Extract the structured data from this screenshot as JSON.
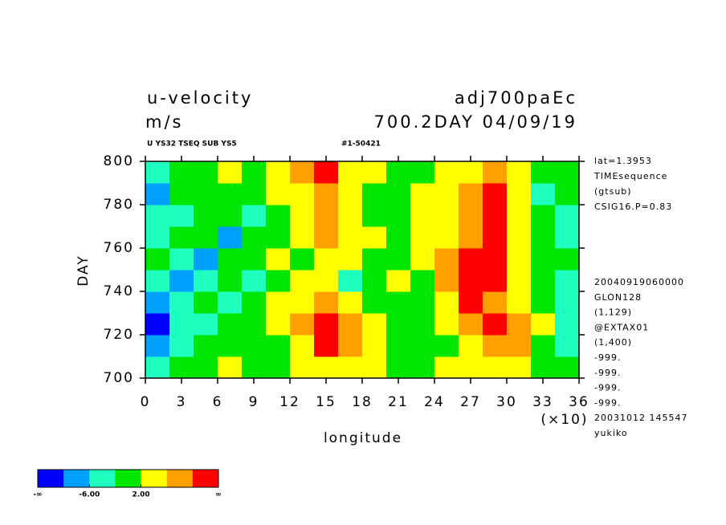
{
  "chart_data": {
    "type": "heatmap",
    "title": "u-velocity",
    "units": "m/s",
    "experiment": "adj700paEc",
    "time_label": "700.2DAY 04/09/19",
    "subtitle": "U YS32 TSEQ SUB YS5",
    "run_id": "#1-50421",
    "x_label": "longitude",
    "x_scale_label": "(×10)",
    "y_label": "DAY",
    "xlim": [
      0,
      36
    ],
    "xticks": [
      0,
      3,
      6,
      9,
      12,
      15,
      18,
      21,
      24,
      27,
      30,
      33,
      36
    ],
    "ylim": [
      700,
      800
    ],
    "yticks": [
      700,
      720,
      740,
      760,
      780,
      800
    ],
    "x_edges": [
      0,
      2,
      4,
      6,
      8,
      10,
      12,
      14,
      16,
      18,
      20,
      22,
      24,
      26,
      28,
      30,
      32,
      34,
      36
    ],
    "y_edges": [
      700,
      710,
      720,
      730,
      740,
      750,
      760,
      770,
      780,
      790,
      800
    ],
    "z": [
      [
        -3,
        -1,
        0,
        2,
        1,
        0,
        3,
        5,
        4,
        3,
        1,
        0,
        2,
        4,
        5,
        3,
        0,
        -2
      ],
      [
        -7,
        -4,
        -1,
        1,
        -2,
        0,
        4,
        11,
        7,
        3,
        0,
        -1,
        1,
        5,
        8,
        6,
        1,
        -4
      ],
      [
        -11,
        -6,
        -3,
        0,
        -1,
        2,
        6,
        12,
        8,
        2,
        -1,
        0,
        3,
        7,
        12,
        9,
        2,
        -3
      ],
      [
        -8,
        -5,
        -2,
        -4,
        -1,
        3,
        5,
        9,
        4,
        1,
        -2,
        1,
        4,
        12,
        9,
        5,
        0,
        -5
      ],
      [
        -4,
        -7,
        -3,
        -1,
        -5,
        0,
        4,
        3,
        -6,
        0,
        2,
        1,
        6,
        11,
        10,
        4,
        -1,
        -3
      ],
      [
        -2,
        -3,
        -8,
        -2,
        0,
        2,
        1,
        5,
        3,
        1,
        0,
        3,
        7,
        13,
        12,
        3,
        0,
        -2
      ],
      [
        -6,
        -2,
        -1,
        -9,
        -1,
        0,
        2,
        8,
        5,
        2,
        1,
        4,
        5,
        9,
        11,
        2,
        -1,
        -4
      ],
      [
        -3,
        -5,
        -1,
        0,
        -3,
        1,
        4,
        6,
        3,
        0,
        -1,
        2,
        4,
        8,
        10,
        3,
        -2,
        -6
      ],
      [
        -9,
        -2,
        0,
        -1,
        1,
        2,
        5,
        9,
        4,
        1,
        0,
        3,
        2,
        6,
        11,
        4,
        -3,
        -2
      ],
      [
        -5,
        -1,
        1,
        2,
        0,
        3,
        6,
        10,
        5,
        2,
        1,
        0,
        3,
        5,
        9,
        2,
        0,
        -1
      ]
    ],
    "levels": [
      -10,
      -6,
      -2,
      2,
      6,
      10
    ],
    "colors": [
      "#0000ff",
      "#00a0ff",
      "#1effc0",
      "#00e600",
      "#ffff00",
      "#ffa000",
      "#ff0000"
    ],
    "colorbar_ticks": [
      {
        "value": -6,
        "label": "-6.00"
      },
      {
        "value": 2,
        "label": "2.00"
      }
    ],
    "colorbar_end_labels": [
      "-∞",
      "∞"
    ],
    "info_top": [
      "lat=1.3953",
      "TIMEsequence",
      "(gtsub)",
      "CSIG16.P=0.83"
    ],
    "info_bottom": [
      "20040919060000",
      "GLON128",
      "(1,129)",
      "@EXTAX01",
      "(1,400)",
      "-999.",
      "-999.",
      "-999.",
      "-999.",
      "20031012 145547",
      "yukiko"
    ]
  }
}
